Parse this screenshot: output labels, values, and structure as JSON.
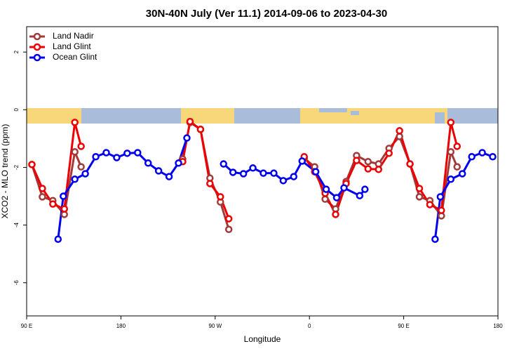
{
  "chart_data": {
    "type": "line",
    "title": "30N-40N July (Ver 11.1)   2014-09-06 to 2023-04-30",
    "x_label": "Longitude",
    "y_label": "XCO2 - MLO trend (ppm)",
    "xlim": [
      90,
      540
    ],
    "xticks": [
      {
        "value": 90,
        "label": "90 E"
      },
      180,
      {
        "value": 270,
        "label": "90 W"
      },
      {
        "value": 360,
        "label": "0"
      },
      {
        "value": 450,
        "label": "90 E"
      },
      {
        "value": 540,
        "label": "180"
      }
    ],
    "ylim": [
      -7.15,
      2.88
    ],
    "yticks": [
      2,
      0,
      -2,
      -4,
      -6
    ],
    "grid": false,
    "legend": "top-left",
    "series": [
      {
        "name": "Land Nadir",
        "color": "#a33a3a",
        "x": [
          95,
          105,
          115,
          126,
          136,
          142,
          null,
          239,
          246,
          256,
          265,
          275,
          283,
          null,
          355,
          365,
          375,
          385,
          395,
          405,
          416,
          426,
          436,
          446,
          456,
          465,
          475,
          486,
          495,
          501
        ],
        "values": [
          -1.9,
          -3.02,
          -3.15,
          -3.63,
          -1.46,
          -1.98,
          null,
          -1.71,
          -0.44,
          -0.68,
          -2.37,
          -3.2,
          -4.15,
          null,
          -1.68,
          -1.98,
          -3.1,
          -3.44,
          -2.49,
          -1.59,
          -1.8,
          -1.88,
          -1.34,
          -0.93,
          -1.88,
          -3.02,
          -3.15,
          -3.68,
          -1.46,
          -1.98
        ]
      },
      {
        "name": "Land Glint",
        "color": "#ee0000",
        "x": [
          95,
          105,
          115,
          126,
          136,
          142,
          null,
          239,
          246,
          256,
          265,
          275,
          283,
          null,
          355,
          365,
          375,
          385,
          395,
          405,
          416,
          426,
          436,
          446,
          456,
          465,
          475,
          486,
          495,
          501
        ],
        "values": [
          -1.9,
          -2.73,
          -3.27,
          -3.44,
          -0.44,
          -1.27,
          null,
          -1.8,
          -0.41,
          -0.68,
          -2.56,
          -3.02,
          -3.78,
          null,
          -1.63,
          -2.15,
          -2.9,
          -3.63,
          -2.56,
          -1.76,
          -2.05,
          -2.07,
          -1.51,
          -0.73,
          -1.88,
          -2.73,
          -3.29,
          -3.49,
          -0.44,
          -1.27
        ]
      },
      {
        "name": "Ocean Glint",
        "color": "#0000ee",
        "x": [
          120,
          125,
          136,
          146,
          156,
          166,
          176,
          186,
          196,
          206,
          216,
          226,
          235,
          243,
          null,
          278,
          287,
          297,
          306,
          316,
          326,
          335,
          345,
          353,
          366,
          376,
          386,
          393,
          408,
          413,
          null,
          480,
          485,
          495,
          506,
          515,
          525,
          535
        ],
        "values": [
          -4.49,
          -3.0,
          -2.41,
          -2.22,
          -1.63,
          -1.49,
          -1.66,
          -1.51,
          -1.49,
          -1.85,
          -2.12,
          -2.32,
          -1.85,
          -0.98,
          null,
          -1.88,
          -2.17,
          -2.22,
          -2.02,
          -2.2,
          -2.2,
          -2.46,
          -2.32,
          -1.78,
          -2.15,
          -2.76,
          -3.05,
          -2.71,
          -2.98,
          -2.76,
          null,
          -4.49,
          -3.02,
          -2.41,
          -2.22,
          -1.63,
          -1.49,
          -1.63
        ]
      }
    ]
  }
}
